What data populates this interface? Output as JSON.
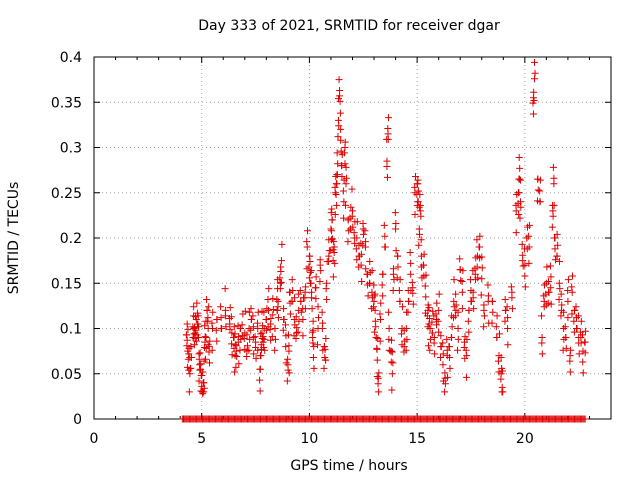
{
  "chart_data": {
    "type": "scatter",
    "title": "Day 333 of 2021, SRMTID for receiver dgar",
    "xlabel": "GPS time / hours",
    "ylabel": "SRMTID / TECUs",
    "xlim": [
      0,
      24
    ],
    "ylim": [
      0,
      0.4
    ],
    "xticks": [
      0,
      5,
      10,
      15,
      20
    ],
    "xtick_labels": [
      "0",
      "5",
      "10",
      "15",
      "20"
    ],
    "yticks": [
      0,
      0.05,
      0.1,
      0.15,
      0.2,
      0.25,
      0.3,
      0.35,
      0.4
    ],
    "ytick_labels": [
      "0",
      "0.05",
      "0.1",
      "0.15",
      "0.2",
      "0.25",
      "0.3",
      "0.35",
      "0.4"
    ],
    "grid": true,
    "marker": "+",
    "color": "#e00000",
    "series": [
      {
        "name": "SRMTID",
        "points": [
          [
            4.3,
            0.093
          ],
          [
            4.35,
            0.075
          ],
          [
            4.4,
            0.072
          ],
          [
            4.45,
            0.05
          ],
          [
            4.5,
            0.08
          ],
          [
            4.6,
            0.09
          ],
          [
            4.65,
            0.1
          ],
          [
            4.7,
            0.095
          ],
          [
            4.75,
            0.11
          ],
          [
            4.8,
            0.105
          ],
          [
            4.85,
            0.09
          ],
          [
            4.9,
            0.06
          ],
          [
            4.95,
            0.055
          ],
          [
            5.0,
            0.048
          ],
          [
            5.05,
            0.028
          ],
          [
            5.1,
            0.04
          ],
          [
            5.15,
            0.085
          ],
          [
            5.2,
            0.09
          ],
          [
            5.25,
            0.12
          ],
          [
            5.3,
            0.1
          ],
          [
            5.35,
            0.08
          ],
          [
            5.5,
            0.1
          ],
          [
            5.7,
            0.11
          ],
          [
            5.9,
            0.1
          ],
          [
            6.1,
            0.12
          ],
          [
            6.3,
            0.105
          ],
          [
            6.4,
            0.095
          ],
          [
            6.5,
            0.09
          ],
          [
            6.55,
            0.07
          ],
          [
            6.6,
            0.075
          ],
          [
            6.7,
            0.085
          ],
          [
            6.8,
            0.1
          ],
          [
            6.9,
            0.092
          ],
          [
            7.0,
            0.095
          ],
          [
            7.1,
            0.075
          ],
          [
            7.2,
            0.1
          ],
          [
            7.3,
            0.11
          ],
          [
            7.4,
            0.09
          ],
          [
            7.5,
            0.085
          ],
          [
            7.6,
            0.1
          ],
          [
            7.7,
            0.055
          ],
          [
            7.75,
            0.07
          ],
          [
            7.8,
            0.095
          ],
          [
            7.85,
            0.085
          ],
          [
            7.9,
            0.1
          ],
          [
            8.0,
            0.11
          ],
          [
            8.1,
            0.12
          ],
          [
            8.2,
            0.105
          ],
          [
            8.3,
            0.115
          ],
          [
            8.4,
            0.1
          ],
          [
            8.5,
            0.12
          ],
          [
            8.55,
            0.13
          ],
          [
            8.65,
            0.15
          ],
          [
            8.7,
            0.175
          ],
          [
            8.8,
            0.11
          ],
          [
            8.9,
            0.08
          ],
          [
            9.0,
            0.06
          ],
          [
            9.05,
            0.075
          ],
          [
            9.1,
            0.14
          ],
          [
            9.2,
            0.13
          ],
          [
            9.3,
            0.11
          ],
          [
            9.4,
            0.095
          ],
          [
            9.5,
            0.12
          ],
          [
            9.6,
            0.13
          ],
          [
            9.7,
            0.11
          ],
          [
            9.8,
            0.14
          ],
          [
            9.9,
            0.19
          ],
          [
            10.0,
            0.18
          ],
          [
            10.05,
            0.15
          ],
          [
            10.1,
            0.14
          ],
          [
            10.15,
            0.09
          ],
          [
            10.2,
            0.08
          ],
          [
            10.3,
            0.145
          ],
          [
            10.4,
            0.1
          ],
          [
            10.5,
            0.17
          ],
          [
            10.6,
            0.1
          ],
          [
            10.7,
            0.08
          ],
          [
            10.75,
            0.065
          ],
          [
            10.8,
            0.15
          ],
          [
            10.9,
            0.18
          ],
          [
            11.0,
            0.21
          ],
          [
            11.05,
            0.22
          ],
          [
            11.1,
            0.175
          ],
          [
            11.15,
            0.19
          ],
          [
            11.2,
            0.25
          ],
          [
            11.25,
            0.26
          ],
          [
            11.3,
            0.27
          ],
          [
            11.35,
            0.33
          ],
          [
            11.4,
            0.357
          ],
          [
            11.45,
            0.32
          ],
          [
            11.5,
            0.28
          ],
          [
            11.6,
            0.24
          ],
          [
            11.65,
            0.3
          ],
          [
            11.7,
            0.26
          ],
          [
            11.8,
            0.22
          ],
          [
            11.9,
            0.21
          ],
          [
            12.0,
            0.23
          ],
          [
            12.1,
            0.2
          ],
          [
            12.2,
            0.2
          ],
          [
            12.3,
            0.18
          ],
          [
            12.4,
            0.17
          ],
          [
            12.5,
            0.21
          ],
          [
            12.6,
            0.19
          ],
          [
            12.7,
            0.16
          ],
          [
            12.8,
            0.15
          ],
          [
            12.9,
            0.14
          ],
          [
            13.0,
            0.13
          ],
          [
            13.05,
            0.12
          ],
          [
            13.1,
            0.09
          ],
          [
            13.15,
            0.065
          ],
          [
            13.2,
            0.045
          ],
          [
            13.3,
            0.11
          ],
          [
            13.4,
            0.16
          ],
          [
            13.5,
            0.19
          ],
          [
            13.6,
            0.285
          ],
          [
            13.65,
            0.315
          ],
          [
            13.7,
            0.1
          ],
          [
            13.8,
            0.075
          ],
          [
            13.85,
            0.05
          ],
          [
            13.9,
            0.16
          ],
          [
            14.0,
            0.21
          ],
          [
            14.1,
            0.18
          ],
          [
            14.2,
            0.13
          ],
          [
            14.3,
            0.1
          ],
          [
            14.4,
            0.08
          ],
          [
            14.5,
            0.1
          ],
          [
            14.6,
            0.13
          ],
          [
            14.7,
            0.16
          ],
          [
            14.8,
            0.145
          ],
          [
            14.9,
            0.25
          ],
          [
            15.0,
            0.26
          ],
          [
            15.05,
            0.24
          ],
          [
            15.1,
            0.21
          ],
          [
            15.15,
            0.23
          ],
          [
            15.2,
            0.18
          ],
          [
            15.3,
            0.17
          ],
          [
            15.4,
            0.135
          ],
          [
            15.5,
            0.12
          ],
          [
            15.55,
            0.105
          ],
          [
            15.6,
            0.1
          ],
          [
            15.7,
            0.095
          ],
          [
            15.8,
            0.09
          ],
          [
            15.9,
            0.11
          ],
          [
            16.0,
            0.12
          ],
          [
            16.1,
            0.08
          ],
          [
            16.2,
            0.06
          ],
          [
            16.3,
            0.045
          ],
          [
            16.4,
            0.07
          ],
          [
            16.5,
            0.08
          ],
          [
            16.6,
            0.09
          ],
          [
            16.7,
            0.13
          ],
          [
            16.8,
            0.12
          ],
          [
            16.9,
            0.1
          ],
          [
            17.0,
            0.165
          ],
          [
            17.1,
            0.14
          ],
          [
            17.2,
            0.085
          ],
          [
            17.3,
            0.07
          ],
          [
            17.4,
            0.12
          ],
          [
            17.5,
            0.13
          ],
          [
            17.6,
            0.14
          ],
          [
            17.7,
            0.16
          ],
          [
            17.8,
            0.18
          ],
          [
            17.9,
            0.19
          ],
          [
            18.0,
            0.155
          ],
          [
            18.1,
            0.12
          ],
          [
            18.3,
            0.13
          ],
          [
            18.5,
            0.13
          ],
          [
            18.7,
            0.09
          ],
          [
            18.8,
            0.07
          ],
          [
            18.9,
            0.05
          ],
          [
            18.95,
            0.035
          ],
          [
            19.1,
            0.12
          ],
          [
            19.2,
            0.1
          ],
          [
            19.4,
            0.14
          ],
          [
            19.6,
            0.23
          ],
          [
            19.7,
            0.25
          ],
          [
            19.75,
            0.265
          ],
          [
            19.8,
            0.24
          ],
          [
            19.9,
            0.175
          ],
          [
            20.0,
            0.17
          ],
          [
            20.1,
            0.2
          ],
          [
            20.2,
            0.19
          ],
          [
            20.4,
            0.355
          ],
          [
            20.45,
            0.376
          ],
          [
            20.6,
            0.265
          ],
          [
            20.7,
            0.24
          ],
          [
            20.8,
            0.09
          ],
          [
            20.9,
            0.13
          ],
          [
            21.0,
            0.15
          ],
          [
            21.1,
            0.14
          ],
          [
            21.2,
            0.145
          ],
          [
            21.3,
            0.23
          ],
          [
            21.35,
            0.26
          ],
          [
            21.4,
            0.2
          ],
          [
            21.5,
            0.18
          ],
          [
            21.6,
            0.15
          ],
          [
            21.7,
            0.12
          ],
          [
            21.8,
            0.1
          ],
          [
            21.9,
            0.09
          ],
          [
            22.0,
            0.13
          ],
          [
            22.1,
            0.07
          ],
          [
            22.2,
            0.14
          ],
          [
            22.3,
            0.12
          ],
          [
            22.4,
            0.1
          ],
          [
            22.5,
            0.09
          ],
          [
            22.6,
            0.09
          ],
          [
            22.7,
            0.075
          ],
          [
            22.8,
            0.085
          ]
        ],
        "zero_range": [
          4.1,
          22.8
        ]
      }
    ]
  }
}
